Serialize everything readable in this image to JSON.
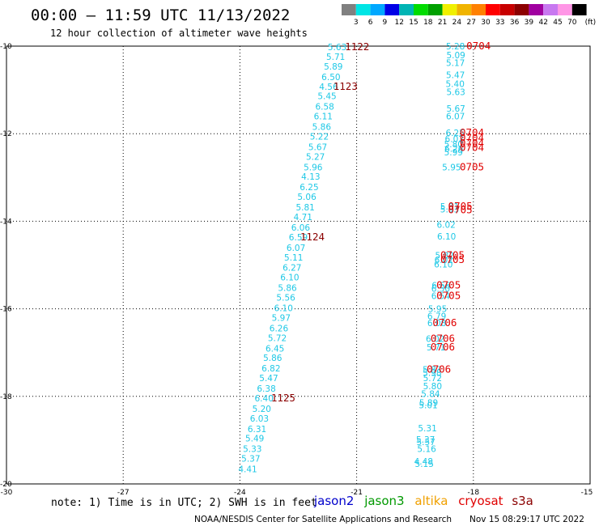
{
  "header": {
    "title": "00:00 – 11:59 UTC 11/13/2022",
    "subtitle": "12 hour collection of altimeter wave heights"
  },
  "colorbar": {
    "labels": [
      "3",
      "6",
      "9",
      "12",
      "15",
      "18",
      "21",
      "24",
      "27",
      "30",
      "33",
      "36",
      "39",
      "42",
      "45",
      "70"
    ],
    "unit": "(ft)",
    "colors": [
      "#808080",
      "#00e5e5",
      "#00a8ff",
      "#0000e6",
      "#00b4b4",
      "#00dc00",
      "#00a000",
      "#f0f000",
      "#f0b400",
      "#ff8000",
      "#ff0000",
      "#c80000",
      "#8c0000",
      "#a000a0",
      "#c878f0",
      "#ff96e6",
      "#000000"
    ]
  },
  "footer": {
    "note": "note: 1) Time is in UTC; 2) SWH is in feet",
    "satellites": [
      {
        "name": "jason2",
        "color": "#0000cc"
      },
      {
        "name": "jason3",
        "color": "#009900"
      },
      {
        "name": "altika",
        "color": "#f0a000"
      },
      {
        "name": "cryosat",
        "color": "#e00000"
      },
      {
        "name": "s3a",
        "color": "#8b0000"
      }
    ],
    "credit": "NOAA/NESDIS Center for Satellite Applications and Research",
    "generated": "Nov 15 08:29:17 UTC 2022"
  },
  "chart_data": {
    "type": "scatter",
    "title": "00:00 – 11:59 UTC 11/13/2022",
    "subtitle": "12 hour collection of altimeter wave heights",
    "xlim": [
      -30,
      -15
    ],
    "ylim": [
      -20,
      -10
    ],
    "x_ticks": [
      "-30",
      "-27",
      "-24",
      "-21",
      "-18",
      "-15"
    ],
    "y_ticks": [
      "-10",
      "-12",
      "-14",
      "-16",
      "-18",
      "-20"
    ],
    "grid": true,
    "point_color": "#1ec8e6",
    "series": [
      {
        "name": "s3a",
        "label_color": "#8b0000",
        "swh_points": [
          {
            "x": -21.5,
            "y": -10.02,
            "v": "5.63"
          },
          {
            "x": -21.54,
            "y": -10.24,
            "v": "5.71"
          },
          {
            "x": -21.6,
            "y": -10.46,
            "v": "5.89"
          },
          {
            "x": -21.66,
            "y": -10.7,
            "v": "6.50"
          },
          {
            "x": -21.72,
            "y": -10.92,
            "v": "4.56"
          },
          {
            "x": -21.76,
            "y": -11.14,
            "v": "5.45"
          },
          {
            "x": -21.82,
            "y": -11.38,
            "v": "6.58"
          },
          {
            "x": -21.86,
            "y": -11.6,
            "v": "6.11"
          },
          {
            "x": -21.9,
            "y": -11.84,
            "v": "5.86"
          },
          {
            "x": -21.96,
            "y": -12.06,
            "v": "5.22"
          },
          {
            "x": -22.0,
            "y": -12.3,
            "v": "5.67"
          },
          {
            "x": -22.06,
            "y": -12.52,
            "v": "5.27"
          },
          {
            "x": -22.12,
            "y": -12.76,
            "v": "5.96"
          },
          {
            "x": -22.18,
            "y": -12.98,
            "v": "4.13"
          },
          {
            "x": -22.22,
            "y": -13.22,
            "v": "6.25"
          },
          {
            "x": -22.28,
            "y": -13.44,
            "v": "5.06"
          },
          {
            "x": -22.32,
            "y": -13.68,
            "v": "5.81"
          },
          {
            "x": -22.38,
            "y": -13.9,
            "v": "4.71"
          },
          {
            "x": -22.44,
            "y": -14.14,
            "v": "6.06"
          },
          {
            "x": -22.5,
            "y": -14.36,
            "v": "6.59"
          },
          {
            "x": -22.56,
            "y": -14.6,
            "v": "6.07"
          },
          {
            "x": -22.62,
            "y": -14.82,
            "v": "5.11"
          },
          {
            "x": -22.66,
            "y": -15.06,
            "v": "6.27"
          },
          {
            "x": -22.72,
            "y": -15.28,
            "v": "6.10"
          },
          {
            "x": -22.78,
            "y": -15.52,
            "v": "5.86"
          },
          {
            "x": -22.82,
            "y": -15.74,
            "v": "5.56"
          },
          {
            "x": -22.88,
            "y": -15.98,
            "v": "6.10"
          },
          {
            "x": -22.94,
            "y": -16.2,
            "v": "5.97"
          },
          {
            "x": -23.0,
            "y": -16.44,
            "v": "6.26"
          },
          {
            "x": -23.04,
            "y": -16.66,
            "v": "5.72"
          },
          {
            "x": -23.1,
            "y": -16.9,
            "v": "6.45"
          },
          {
            "x": -23.16,
            "y": -17.12,
            "v": "5.86"
          },
          {
            "x": -23.2,
            "y": -17.36,
            "v": "6.82"
          },
          {
            "x": -23.26,
            "y": -17.58,
            "v": "5.47"
          },
          {
            "x": -23.32,
            "y": -17.82,
            "v": "6.38"
          },
          {
            "x": -23.38,
            "y": -18.04,
            "v": "6.40"
          },
          {
            "x": -23.44,
            "y": -18.28,
            "v": "5.20"
          },
          {
            "x": -23.5,
            "y": -18.5,
            "v": "6.03"
          },
          {
            "x": -23.56,
            "y": -18.74,
            "v": "6.31"
          },
          {
            "x": -23.62,
            "y": -18.96,
            "v": "5.49"
          },
          {
            "x": -23.68,
            "y": -19.2,
            "v": "5.33"
          },
          {
            "x": -23.72,
            "y": -19.42,
            "v": "5.37"
          },
          {
            "x": -23.8,
            "y": -19.66,
            "v": "4.41"
          }
        ],
        "time_labels": [
          {
            "x": -21.3,
            "y": -10.02,
            "t": "1122"
          },
          {
            "x": -21.6,
            "y": -10.92,
            "t": "1123"
          },
          {
            "x": -22.45,
            "y": -14.36,
            "t": "1124"
          },
          {
            "x": -23.2,
            "y": -18.04,
            "t": "1125"
          }
        ]
      },
      {
        "name": "cryosat",
        "label_color": "#e00000",
        "swh_points": [
          {
            "x": -18.46,
            "y": -10.0,
            "v": "5.28"
          },
          {
            "x": -18.45,
            "y": -10.2,
            "v": "5.09"
          },
          {
            "x": -18.46,
            "y": -10.38,
            "v": "5.17"
          },
          {
            "x": -18.46,
            "y": -10.66,
            "v": "5.47"
          },
          {
            "x": -18.47,
            "y": -10.86,
            "v": "5.40"
          },
          {
            "x": -18.45,
            "y": -11.04,
            "v": "5.63"
          },
          {
            "x": -18.45,
            "y": -11.42,
            "v": "5.67"
          },
          {
            "x": -18.46,
            "y": -11.6,
            "v": "6.07"
          },
          {
            "x": -18.47,
            "y": -11.98,
            "v": "6.25"
          },
          {
            "x": -18.49,
            "y": -12.12,
            "v": "6.02"
          },
          {
            "x": -18.51,
            "y": -12.24,
            "v": "5.80"
          },
          {
            "x": -18.5,
            "y": -12.34,
            "v": "6.26"
          },
          {
            "x": -18.51,
            "y": -12.42,
            "v": "5.99"
          },
          {
            "x": -18.56,
            "y": -12.76,
            "v": "5.95"
          },
          {
            "x": -18.61,
            "y": -13.66,
            "v": "5.81"
          },
          {
            "x": -18.61,
            "y": -13.72,
            "v": "5.93"
          },
          {
            "x": -18.7,
            "y": -14.08,
            "v": "6.02"
          },
          {
            "x": -18.69,
            "y": -14.34,
            "v": "6.10"
          },
          {
            "x": -18.74,
            "y": -14.78,
            "v": "5.82"
          },
          {
            "x": -18.76,
            "y": -14.88,
            "v": "6.02"
          },
          {
            "x": -18.77,
            "y": -14.98,
            "v": "6.10"
          },
          {
            "x": -18.83,
            "y": -15.46,
            "v": "6.56"
          },
          {
            "x": -18.84,
            "y": -15.54,
            "v": "6.50"
          },
          {
            "x": -18.84,
            "y": -15.7,
            "v": "6.54"
          },
          {
            "x": -18.92,
            "y": -16.0,
            "v": "5.95"
          },
          {
            "x": -18.94,
            "y": -16.16,
            "v": "6.79"
          },
          {
            "x": -18.94,
            "y": -16.32,
            "v": "6.08"
          },
          {
            "x": -18.98,
            "y": -16.68,
            "v": "6.02"
          },
          {
            "x": -18.96,
            "y": -16.88,
            "v": "5.71"
          },
          {
            "x": -19.06,
            "y": -17.38,
            "v": "5.83"
          },
          {
            "x": -19.06,
            "y": -17.46,
            "v": "5.98"
          },
          {
            "x": -19.05,
            "y": -17.58,
            "v": "5.72"
          },
          {
            "x": -19.05,
            "y": -17.76,
            "v": "5.80"
          },
          {
            "x": -19.1,
            "y": -17.94,
            "v": "5.84"
          },
          {
            "x": -19.15,
            "y": -18.14,
            "v": "5.89"
          },
          {
            "x": -19.16,
            "y": -18.2,
            "v": "5.01"
          },
          {
            "x": -19.18,
            "y": -18.72,
            "v": "5.31"
          },
          {
            "x": -19.23,
            "y": -18.98,
            "v": "5.37"
          },
          {
            "x": -19.22,
            "y": -19.04,
            "v": "5.57"
          },
          {
            "x": -19.2,
            "y": -19.2,
            "v": "5.16"
          },
          {
            "x": -19.28,
            "y": -19.48,
            "v": "4.48"
          },
          {
            "x": -19.26,
            "y": -19.54,
            "v": "5.15"
          }
        ],
        "time_labels": [
          {
            "x": -18.18,
            "y": -10.0,
            "t": "0704"
          },
          {
            "x": -18.35,
            "y": -11.98,
            "t": "0704"
          },
          {
            "x": -18.35,
            "y": -12.1,
            "t": "0704"
          },
          {
            "x": -18.35,
            "y": -12.22,
            "t": "0704"
          },
          {
            "x": -18.35,
            "y": -12.32,
            "t": "0704"
          },
          {
            "x": -18.35,
            "y": -12.76,
            "t": "0705"
          },
          {
            "x": -18.65,
            "y": -13.66,
            "t": "0705"
          },
          {
            "x": -18.65,
            "y": -13.74,
            "t": "0705"
          },
          {
            "x": -18.85,
            "y": -14.78,
            "t": "0705"
          },
          {
            "x": -18.85,
            "y": -14.88,
            "t": "0705"
          },
          {
            "x": -18.95,
            "y": -15.46,
            "t": "0705"
          },
          {
            "x": -18.95,
            "y": -15.7,
            "t": "0705"
          },
          {
            "x": -19.05,
            "y": -16.32,
            "t": "0706"
          },
          {
            "x": -19.1,
            "y": -16.68,
            "t": "0706"
          },
          {
            "x": -19.1,
            "y": -16.88,
            "t": "0706"
          },
          {
            "x": -19.2,
            "y": -17.38,
            "t": "0706"
          }
        ]
      }
    ]
  }
}
